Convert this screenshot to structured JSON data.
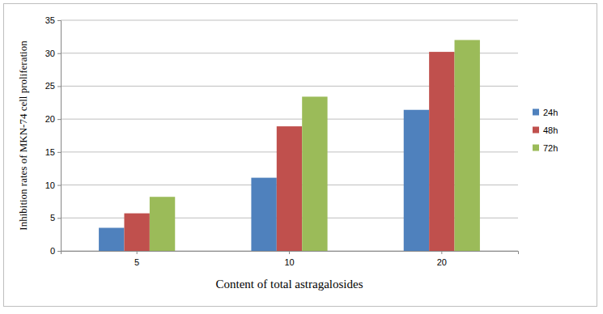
{
  "chart_data": {
    "type": "bar",
    "x_label": "Content of total astragalosides",
    "y_label": "Inhibition rates of MKN-74 cell proliferation",
    "categories": [
      "5",
      "10",
      "20"
    ],
    "series": [
      {
        "name": "24h",
        "color": "#4f81bd",
        "values": [
          3.5,
          11.1,
          21.4
        ]
      },
      {
        "name": "48h",
        "color": "#c0504d",
        "values": [
          5.7,
          18.9,
          30.2
        ]
      },
      {
        "name": "72h",
        "color": "#9bbb59",
        "values": [
          8.2,
          23.4,
          32.0
        ]
      }
    ],
    "ylim": [
      0,
      35
    ],
    "yticks": [
      0,
      5,
      10,
      15,
      20,
      25,
      30,
      35
    ],
    "grid": true,
    "legend": "right"
  }
}
